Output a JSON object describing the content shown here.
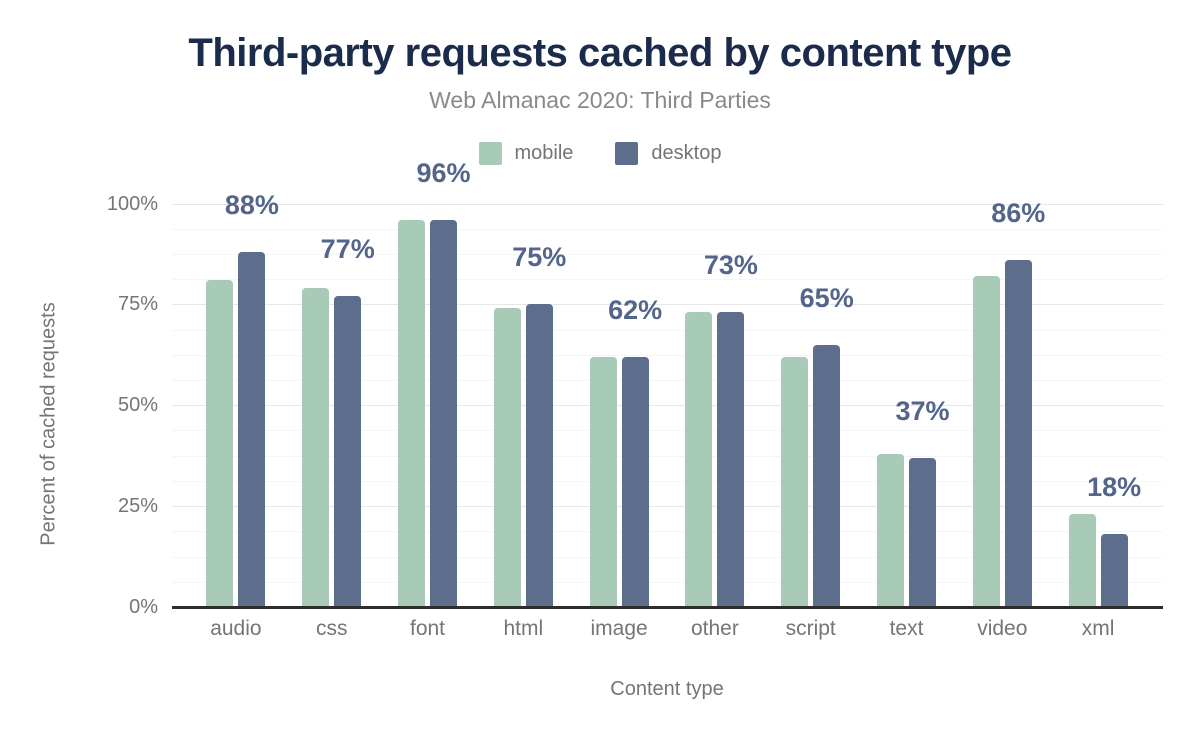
{
  "chart": {
    "title": "Third-party requests cached by content type",
    "subtitle": "Web Almanac 2020: Third Parties"
  },
  "chart_data": {
    "type": "bar",
    "title": "Third-party requests cached by content type",
    "subtitle": "Web Almanac 2020: Third Parties",
    "categories": [
      "audio",
      "css",
      "font",
      "html",
      "image",
      "other",
      "script",
      "text",
      "video",
      "xml"
    ],
    "series": [
      {
        "name": "mobile",
        "color": "#a8cbb7",
        "values": [
          81,
          79,
          96,
          74,
          62,
          73,
          62,
          38,
          82,
          23
        ]
      },
      {
        "name": "desktop",
        "color": "#5d6e8d",
        "values": [
          88,
          77,
          96,
          75,
          62,
          73,
          65,
          37,
          86,
          18
        ]
      }
    ],
    "data_labels": [
      "88%",
      "77%",
      "96%",
      "75%",
      "62%",
      "73%",
      "65%",
      "37%",
      "86%",
      "18%"
    ],
    "data_labels_follow_series": "desktop",
    "xlabel": "Content type",
    "ylabel": "Percent of cached requests",
    "ylim": [
      0,
      100
    ],
    "y_ticks": [
      {
        "value": 0,
        "label": "0%"
      },
      {
        "value": 25,
        "label": "25%"
      },
      {
        "value": 50,
        "label": "50%"
      },
      {
        "value": 75,
        "label": "75%"
      },
      {
        "value": 100,
        "label": "100%"
      }
    ],
    "grid": true,
    "legend_position": "top"
  },
  "colors": {
    "title": "#1b2b4b",
    "subtitle": "#898989",
    "axis_text": "#757575",
    "data_label": "#53658b",
    "grid_major": "#e7e7e7",
    "grid_minor": "#f5f5f5",
    "axis_line": "#2d2d2d",
    "background": "#ffffff"
  }
}
